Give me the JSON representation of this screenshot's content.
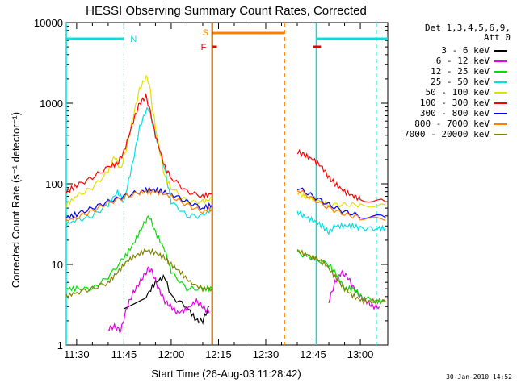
{
  "chart_data": {
    "type": "line",
    "title": "HESSI Observing Summary Count Rates, Corrected",
    "xlabel": "Start Time (26-Aug-03 11:28:42)",
    "ylabel": "Corrected Count Rate (s⁻¹ detector⁻¹)",
    "yscale": "log",
    "xlim_minutes": [
      686.7,
      788.7
    ],
    "ylim": [
      1,
      10000
    ],
    "xticks": [
      "11:30",
      "11:45",
      "12:00",
      "12:15",
      "12:30",
      "12:45",
      "13:00"
    ],
    "xtick_minutes": [
      690,
      705,
      720,
      735,
      750,
      765,
      780
    ],
    "yticks": [
      "1",
      "10",
      "100",
      "1000",
      "10000"
    ],
    "ytick_values": [
      1,
      10,
      100,
      1000,
      10000
    ],
    "legend_title": [
      "Det 1,3,4,5,6,9,",
      "Att 0"
    ],
    "legend_position": "right",
    "series": [
      {
        "name": "3 - 6 keV",
        "color": "#000000",
        "x": [
          705,
          712,
          715,
          718,
          720,
          725,
          728,
          730,
          732
        ],
        "y": [
          3,
          4,
          6,
          7,
          4,
          3,
          2,
          2,
          3
        ]
      },
      {
        "name": "6 - 12 keV",
        "color": "#e000e0",
        "x": [
          700,
          702,
          704,
          706,
          708,
          710,
          712,
          713,
          714,
          716,
          718,
          720,
          722,
          725,
          728,
          730,
          732,
          770,
          772,
          774,
          776,
          778,
          780,
          782,
          784,
          786
        ],
        "y": [
          1.6,
          1.7,
          1.5,
          3,
          4.5,
          6,
          8,
          9,
          8,
          5,
          3.5,
          3,
          2.5,
          2.8,
          3.5,
          3,
          2.5,
          3.5,
          6,
          8,
          7,
          5,
          4,
          3.5,
          3,
          3
        ]
      },
      {
        "name": "12 - 25 keV",
        "color": "#00e000",
        "x": [
          686.7,
          690,
          695,
          700,
          705,
          708,
          711,
          713,
          715,
          718,
          720,
          725,
          730,
          733,
          760,
          765,
          770,
          772,
          775,
          778,
          780,
          785,
          788
        ],
        "y": [
          5,
          5,
          5,
          7,
          12,
          18,
          30,
          40,
          25,
          15,
          8,
          5,
          5,
          5,
          14,
          12,
          10,
          8,
          5,
          5,
          4,
          3.5,
          3.5
        ]
      },
      {
        "name": "25 - 50 keV",
        "color": "#00e0e0",
        "x": [
          686.7,
          690,
          695,
          700,
          703,
          705,
          708,
          710,
          712,
          713,
          715,
          718,
          720,
          725,
          730,
          733,
          760,
          762,
          765,
          768,
          770,
          772,
          775,
          778,
          780,
          785,
          788
        ],
        "y": [
          32,
          35,
          40,
          55,
          80,
          60,
          200,
          500,
          800,
          850,
          400,
          150,
          60,
          40,
          40,
          50,
          45,
          40,
          35,
          30,
          25,
          30,
          30,
          30,
          28,
          28,
          28
        ]
      },
      {
        "name": "50 - 100 keV",
        "color": "#e0e000",
        "x": [
          686.7,
          690,
          695,
          700,
          702,
          704,
          706,
          708,
          710,
          712,
          713,
          714,
          716,
          718,
          720,
          725,
          730,
          733,
          760,
          762,
          765,
          768,
          770,
          775,
          780,
          788
        ],
        "y": [
          55,
          70,
          90,
          140,
          220,
          150,
          300,
          700,
          1500,
          2100,
          1800,
          900,
          300,
          120,
          90,
          60,
          60,
          65,
          80,
          70,
          65,
          60,
          55,
          55,
          55,
          55
        ]
      },
      {
        "name": "100 - 300 keV",
        "color": "#ff0000",
        "x": [
          686.7,
          690,
          695,
          700,
          703,
          705,
          708,
          710,
          712,
          713,
          715,
          718,
          720,
          725,
          730,
          733,
          760,
          762,
          765,
          768,
          770,
          772,
          775,
          778,
          780,
          788
        ],
        "y": [
          80,
          95,
          120,
          160,
          180,
          250,
          600,
          1000,
          1200,
          900,
          400,
          160,
          120,
          80,
          70,
          75,
          250,
          230,
          200,
          160,
          120,
          100,
          80,
          70,
          65,
          60
        ]
      },
      {
        "name": "300 - 800 keV",
        "color": "#0000ff",
        "x": [
          686.7,
          690,
          695,
          700,
          705,
          710,
          713,
          716,
          720,
          725,
          730,
          733,
          760,
          765,
          770,
          775,
          780,
          788
        ],
        "y": [
          38,
          42,
          50,
          60,
          70,
          80,
          85,
          82,
          75,
          60,
          50,
          55,
          90,
          70,
          55,
          45,
          40,
          38
        ]
      },
      {
        "name": "800 - 7000 keV",
        "color": "#ff8000",
        "x": [
          686.7,
          690,
          695,
          700,
          705,
          710,
          713,
          716,
          720,
          725,
          730,
          733,
          760,
          765,
          770,
          775,
          780,
          788
        ],
        "y": [
          35,
          38,
          46,
          58,
          68,
          78,
          80,
          78,
          70,
          55,
          45,
          50,
          85,
          65,
          50,
          42,
          38,
          35
        ]
      },
      {
        "name": "7000 - 20000 keV",
        "color": "#808000",
        "x": [
          686.7,
          690,
          695,
          700,
          703,
          706,
          709,
          712,
          715,
          718,
          720,
          723,
          726,
          730,
          733,
          760,
          763,
          766,
          769,
          772,
          775,
          778,
          781,
          784,
          788
        ],
        "y": [
          4,
          4.5,
          5,
          6,
          8,
          11,
          13,
          15,
          14,
          12,
          10,
          8,
          6,
          5,
          5,
          15,
          13,
          12,
          10,
          7,
          5,
          4,
          3.5,
          3.5,
          3.5
        ]
      }
    ],
    "annotations": [
      {
        "label": "N",
        "color": "#00e0e0"
      },
      {
        "label": "S",
        "color": "#ff8000"
      },
      {
        "label": "F",
        "color": "#e00000"
      }
    ],
    "observing_flags": {
      "night_intervals": [
        [
          686.7,
          705
        ],
        [
          766,
          788.7
        ]
      ],
      "saa_interval": [
        733,
        756
      ],
      "flare_intervals": [
        [
          733,
          734.5
        ],
        [
          765,
          767.5
        ]
      ],
      "attenuator_line": 733,
      "saa_end_line": 756
    },
    "timestamp": "30-Jan-2010 14:52"
  },
  "colors": {
    "axis": "#000000",
    "night": "#00e0e0",
    "saa": "#ff8000",
    "flare": "#e00000",
    "attenuator": "#a05000"
  }
}
